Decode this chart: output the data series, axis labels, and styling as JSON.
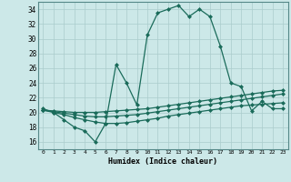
{
  "xlabel": "Humidex (Indice chaleur)",
  "bg_color": "#cce8e8",
  "grid_color": "#aacccc",
  "line_color": "#1a6b5a",
  "xlim": [
    -0.5,
    23.5
  ],
  "ylim": [
    15.0,
    35.0
  ],
  "yticks": [
    16,
    18,
    20,
    22,
    24,
    26,
    28,
    30,
    32,
    34
  ],
  "xticks": [
    0,
    1,
    2,
    3,
    4,
    5,
    6,
    7,
    8,
    9,
    10,
    11,
    12,
    13,
    14,
    15,
    16,
    17,
    18,
    19,
    20,
    21,
    22,
    23
  ],
  "line1_x": [
    0,
    1,
    2,
    3,
    4,
    5,
    6,
    7,
    8,
    9,
    10,
    11,
    12,
    13,
    14,
    15,
    16,
    17,
    18,
    19,
    20,
    21,
    22,
    23
  ],
  "line1_y": [
    20.5,
    20.0,
    19.0,
    18.0,
    17.5,
    16.0,
    18.5,
    26.5,
    24.0,
    21.0,
    30.5,
    33.5,
    34.0,
    34.5,
    33.0,
    34.0,
    33.0,
    29.0,
    24.0,
    23.5,
    20.2,
    21.5,
    20.5,
    20.5
  ],
  "line2_x": [
    0,
    1,
    2,
    3,
    4,
    5,
    6,
    7,
    8,
    9,
    10,
    11,
    12,
    13,
    14,
    15,
    16,
    17,
    18,
    19,
    20,
    21,
    22,
    23
  ],
  "line2_y": [
    20.3,
    20.2,
    20.1,
    20.0,
    20.0,
    20.0,
    20.1,
    20.2,
    20.3,
    20.4,
    20.5,
    20.7,
    20.9,
    21.1,
    21.3,
    21.5,
    21.7,
    21.9,
    22.1,
    22.3,
    22.5,
    22.7,
    22.9,
    23.0
  ],
  "line3_x": [
    0,
    1,
    2,
    3,
    4,
    5,
    6,
    7,
    8,
    9,
    10,
    11,
    12,
    13,
    14,
    15,
    16,
    17,
    18,
    19,
    20,
    21,
    22,
    23
  ],
  "line3_y": [
    20.3,
    20.1,
    19.9,
    19.7,
    19.5,
    19.4,
    19.4,
    19.5,
    19.6,
    19.7,
    19.9,
    20.1,
    20.3,
    20.5,
    20.7,
    20.9,
    21.1,
    21.3,
    21.5,
    21.7,
    21.9,
    22.1,
    22.3,
    22.5
  ],
  "line4_x": [
    0,
    1,
    2,
    3,
    4,
    5,
    6,
    7,
    8,
    9,
    10,
    11,
    12,
    13,
    14,
    15,
    16,
    17,
    18,
    19,
    20,
    21,
    22,
    23
  ],
  "line4_y": [
    20.3,
    20.0,
    19.7,
    19.3,
    19.0,
    18.7,
    18.5,
    18.5,
    18.6,
    18.8,
    19.0,
    19.2,
    19.5,
    19.7,
    19.9,
    20.1,
    20.3,
    20.5,
    20.7,
    20.9,
    21.0,
    21.1,
    21.2,
    21.3
  ]
}
